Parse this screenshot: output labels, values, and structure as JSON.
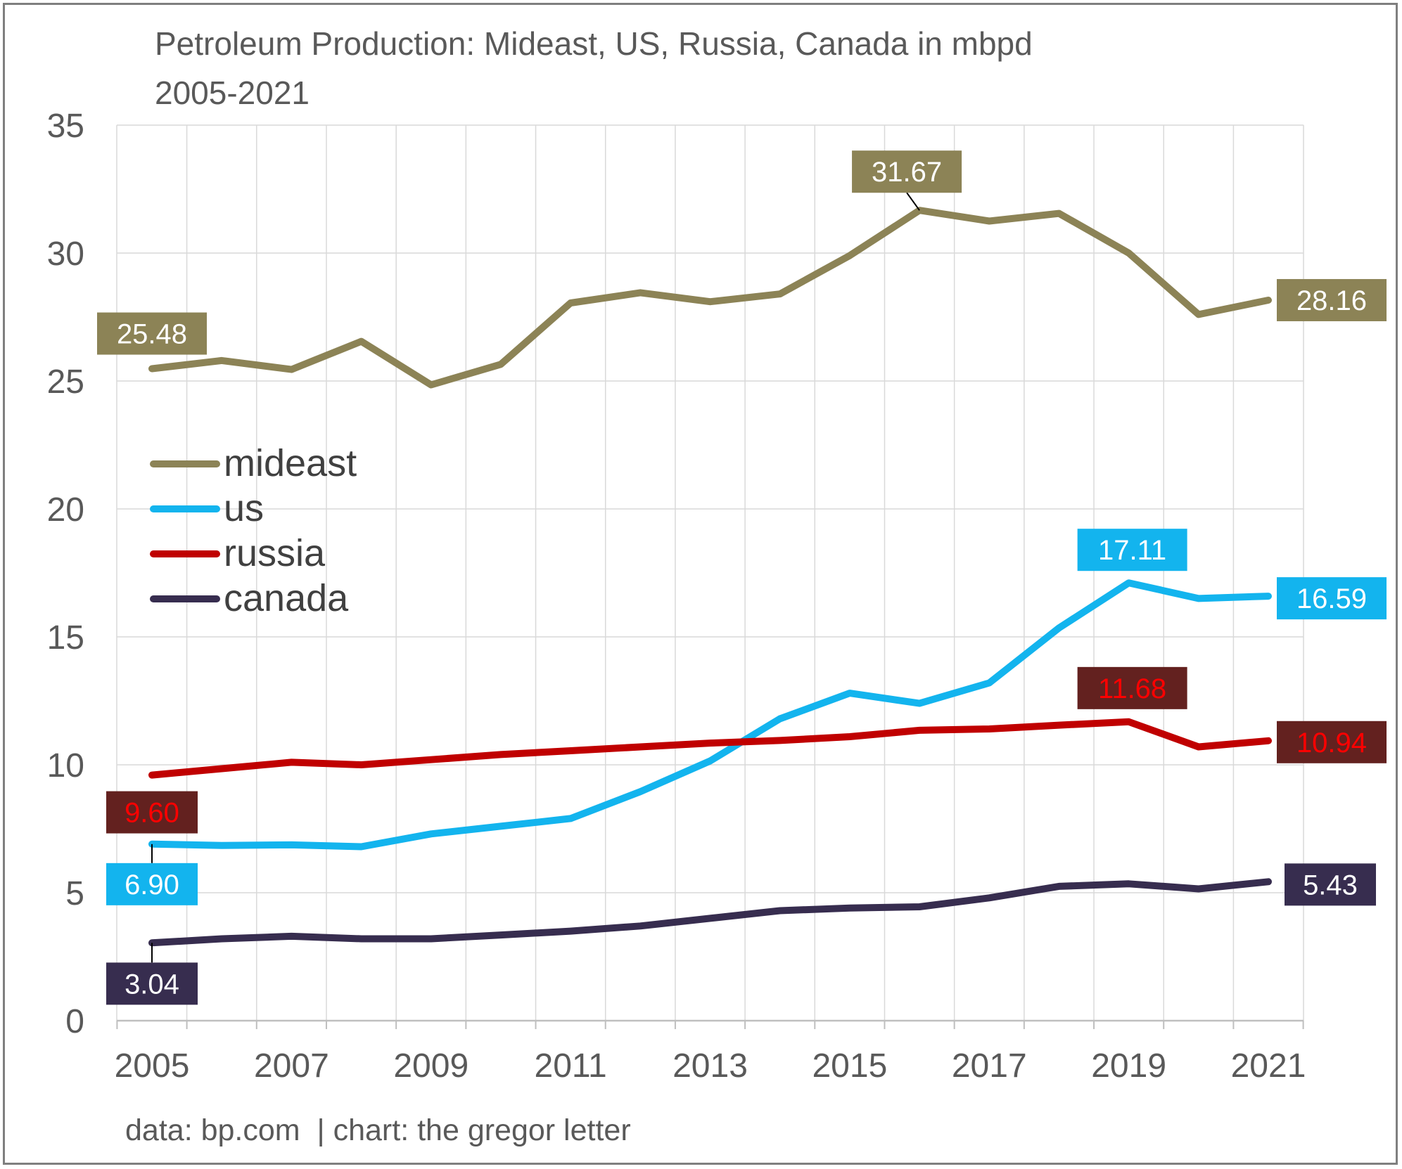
{
  "chart_data": {
    "type": "line",
    "title": "Petroleum Production: Mideast, US, Russia, Canada in mbpd",
    "subtitle": "2005-2021",
    "xlabel": "",
    "ylabel": "",
    "x": [
      2005,
      2006,
      2007,
      2008,
      2009,
      2010,
      2011,
      2012,
      2013,
      2014,
      2015,
      2016,
      2017,
      2018,
      2019,
      2020,
      2021
    ],
    "x_tick_labels": [
      "2005",
      "2007",
      "2009",
      "2011",
      "2013",
      "2015",
      "2017",
      "2019",
      "2021"
    ],
    "y_tick_labels": [
      "0",
      "5",
      "10",
      "15",
      "20",
      "25",
      "30",
      "35"
    ],
    "ylim": [
      0,
      35
    ],
    "grid": true,
    "legend_position": "center-left",
    "series": [
      {
        "name": "mideast",
        "color": "#8C8356",
        "values": [
          25.48,
          25.8,
          25.45,
          26.55,
          24.85,
          25.65,
          28.05,
          28.45,
          28.1,
          28.4,
          29.9,
          31.67,
          31.25,
          31.55,
          30.0,
          27.6,
          28.16
        ]
      },
      {
        "name": "us",
        "color": "#13B4EE",
        "values": [
          6.9,
          6.85,
          6.87,
          6.8,
          7.3,
          7.6,
          7.9,
          8.95,
          10.15,
          11.8,
          12.8,
          12.4,
          13.2,
          15.35,
          17.11,
          16.5,
          16.59
        ]
      },
      {
        "name": "russia",
        "color": "#C00000",
        "values": [
          9.6,
          9.85,
          10.1,
          10.0,
          10.2,
          10.4,
          10.55,
          10.7,
          10.85,
          10.95,
          11.1,
          11.35,
          11.4,
          11.55,
          11.68,
          10.7,
          10.94
        ]
      },
      {
        "name": "canada",
        "color": "#372D4F",
        "values": [
          3.04,
          3.2,
          3.3,
          3.2,
          3.2,
          3.35,
          3.5,
          3.7,
          4.0,
          4.3,
          4.4,
          4.45,
          4.8,
          5.25,
          5.35,
          5.15,
          5.43
        ]
      }
    ],
    "annotations": [
      {
        "series": "mideast",
        "year": 2005,
        "text": "25.48",
        "bg": "#8C8356",
        "fg": "#ffffff"
      },
      {
        "series": "mideast",
        "year": 2016,
        "text": "31.67",
        "bg": "#8C8356",
        "fg": "#ffffff"
      },
      {
        "series": "mideast",
        "year": 2021,
        "text": "28.16",
        "bg": "#8C8356",
        "fg": "#ffffff"
      },
      {
        "series": "us",
        "year": 2005,
        "text": "6.90",
        "bg": "#13B4EE",
        "fg": "#ffffff"
      },
      {
        "series": "us",
        "year": 2019,
        "text": "17.11",
        "bg": "#13B4EE",
        "fg": "#ffffff"
      },
      {
        "series": "us",
        "year": 2021,
        "text": "16.59",
        "bg": "#13B4EE",
        "fg": "#ffffff"
      },
      {
        "series": "russia",
        "year": 2005,
        "text": "9.60",
        "bg": "#63211F",
        "fg": "#FF0000"
      },
      {
        "series": "russia",
        "year": 2019,
        "text": "11.68",
        "bg": "#63211F",
        "fg": "#FF0000"
      },
      {
        "series": "russia",
        "year": 2021,
        "text": "10.94",
        "bg": "#63211F",
        "fg": "#FF0000"
      },
      {
        "series": "canada",
        "year": 2005,
        "text": "3.04",
        "bg": "#372D4F",
        "fg": "#ffffff"
      },
      {
        "series": "canada",
        "year": 2021,
        "text": "5.43",
        "bg": "#372D4F",
        "fg": "#ffffff"
      }
    ],
    "source_note": "data: bp.com  | chart: the gregor letter"
  }
}
